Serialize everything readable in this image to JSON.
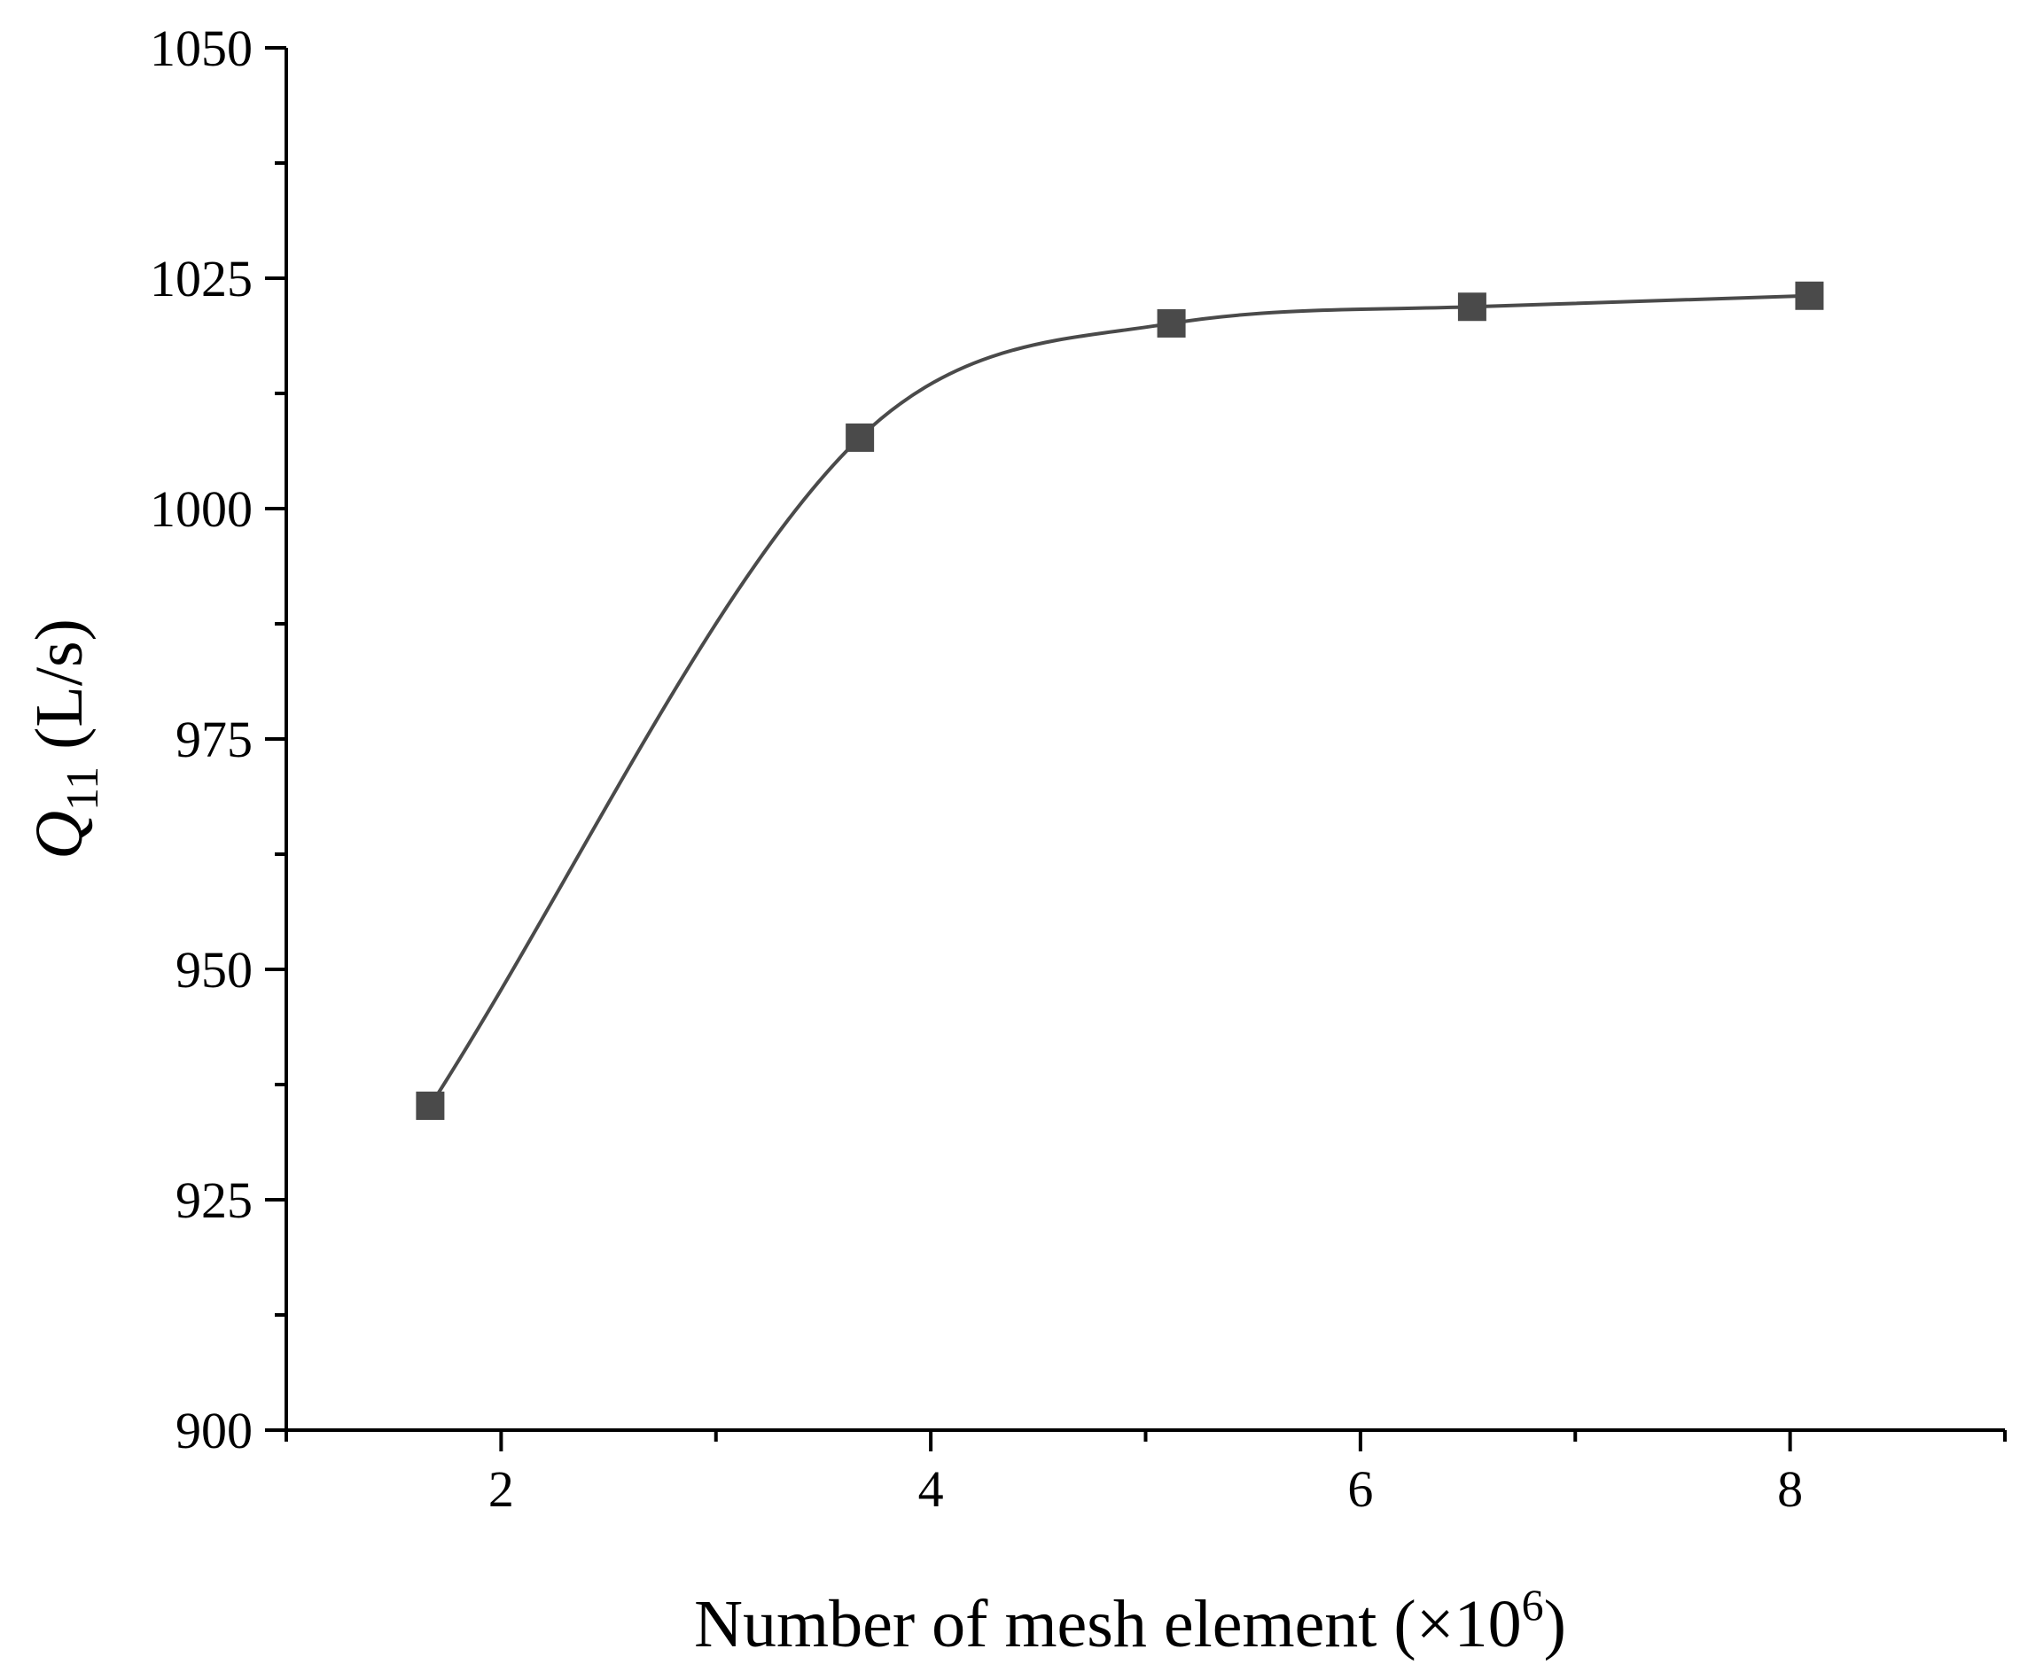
{
  "chart_data": {
    "type": "line",
    "xlabel": {
      "text": "Number of mesh element (×10",
      "superscript": "6",
      "suffix": ")"
    },
    "ylabel": {
      "symbol": "Q",
      "subscript": "11",
      "unit": " (L/s)"
    },
    "xlim": [
      1,
      9
    ],
    "ylim": [
      900,
      1050
    ],
    "x_major_ticks": [
      2,
      4,
      6,
      8
    ],
    "x_tick_labels": [
      "2",
      "4",
      "6",
      "8"
    ],
    "x_minor_ticks": [
      1,
      3,
      5,
      7,
      9
    ],
    "y_major_ticks": [
      900,
      925,
      950,
      975,
      1000,
      1025,
      1050
    ],
    "y_tick_labels": [
      "900",
      "925",
      "950",
      "975",
      "1000",
      "1025",
      "1050"
    ],
    "y_minor_ticks": [
      912.5,
      937.5,
      962.5,
      987.5,
      1012.5,
      1037.5
    ],
    "grid": false,
    "legend": "none",
    "series": [
      {
        "marker": "square",
        "line": "smooth",
        "color": "#4a4a4a",
        "x": [
          1.67,
          3.67,
          5.12,
          6.52,
          8.09
        ],
        "y": [
          935.2,
          1007.7,
          1020.1,
          1021.9,
          1023.1
        ]
      }
    ]
  }
}
